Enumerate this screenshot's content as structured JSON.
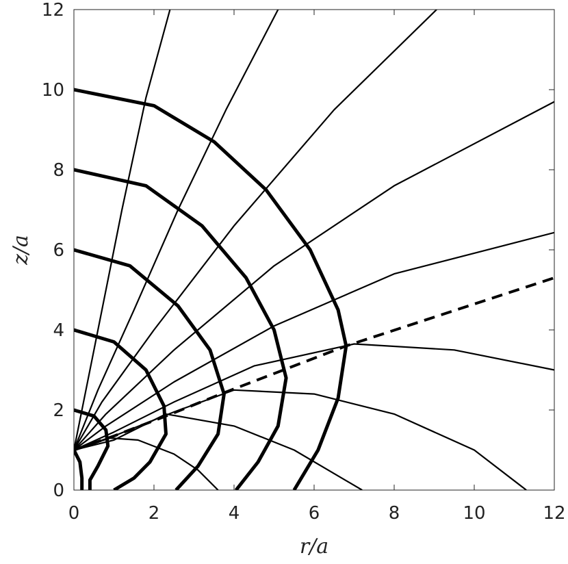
{
  "chart_data": {
    "type": "line",
    "xlabel": "r/a",
    "ylabel": "z/a",
    "xlim": [
      0,
      12
    ],
    "ylim": [
      0,
      12
    ],
    "xticks": [
      0,
      2,
      4,
      6,
      8,
      10,
      12
    ],
    "yticks": [
      0,
      2,
      4,
      6,
      8,
      10,
      12
    ],
    "grid": false,
    "series": [
      {
        "color": "#000000",
        "line_width": 5,
        "dashed": false,
        "x": [
          0,
          2,
          3.5,
          4.8,
          5.9,
          6.6,
          6.8,
          6.6,
          6.1,
          5.5
        ],
        "values": [
          10,
          9.6,
          8.7,
          7.5,
          6,
          4.5,
          3.6,
          2.3,
          1,
          0
        ]
      },
      {
        "color": "#000000",
        "line_width": 5,
        "dashed": false,
        "x": [
          0,
          1.8,
          3.2,
          4.3,
          5.0,
          5.3,
          5.1,
          4.6,
          4.05
        ],
        "values": [
          8,
          7.6,
          6.6,
          5.3,
          4,
          2.8,
          1.6,
          0.7,
          0
        ]
      },
      {
        "color": "#000000",
        "line_width": 5,
        "dashed": false,
        "x": [
          0,
          1.4,
          2.6,
          3.4,
          3.75,
          3.6,
          3.1,
          2.55
        ],
        "values": [
          6,
          5.6,
          4.6,
          3.5,
          2.4,
          1.4,
          0.6,
          0
        ]
      },
      {
        "color": "#000000",
        "line_width": 5,
        "dashed": false,
        "x": [
          0,
          1,
          1.8,
          2.25,
          2.3,
          1.9,
          1.5,
          1.0
        ],
        "values": [
          4,
          3.7,
          3,
          2.1,
          1.4,
          0.7,
          0.3,
          0
        ]
      },
      {
        "color": "#000000",
        "line_width": 5,
        "dashed": false,
        "x": [
          0,
          0.5,
          0.8,
          0.85,
          0.6,
          0.4,
          0.4
        ],
        "values": [
          2,
          1.85,
          1.5,
          1.1,
          0.6,
          0.25,
          0
        ]
      },
      {
        "color": "#000000",
        "line_width": 5,
        "dashed": false,
        "x": [
          0,
          0.15,
          0.2,
          0.2
        ],
        "values": [
          1,
          0.7,
          0.3,
          0
        ]
      },
      {
        "color": "#000000",
        "line_width": 2.2,
        "dashed": false,
        "x": [
          0,
          0.5,
          1.2,
          1.8,
          2.4
        ],
        "values": [
          1,
          3.5,
          7,
          9.8,
          12
        ]
      },
      {
        "color": "#000000",
        "line_width": 2.2,
        "dashed": false,
        "x": [
          0,
          0.6,
          1.5,
          2.6,
          3.8,
          5.1
        ],
        "values": [
          1,
          2.5,
          4.5,
          7,
          9.5,
          12
        ]
      },
      {
        "color": "#000000",
        "line_width": 2.2,
        "dashed": false,
        "x": [
          0,
          0.7,
          2,
          4,
          6.5,
          9.06
        ],
        "values": [
          1,
          2.2,
          4,
          6.6,
          9.5,
          12
        ]
      },
      {
        "color": "#000000",
        "line_width": 2.2,
        "dashed": false,
        "x": [
          0,
          0.8,
          2.5,
          5,
          8,
          12
        ],
        "values": [
          1,
          1.9,
          3.5,
          5.6,
          7.6,
          9.7
        ]
      },
      {
        "color": "#000000",
        "line_width": 2.2,
        "dashed": false,
        "x": [
          0,
          0.8,
          2.5,
          5,
          8,
          12
        ],
        "values": [
          1,
          1.6,
          2.7,
          4.1,
          5.4,
          6.43
        ]
      },
      {
        "color": "#000000",
        "line_width": 4,
        "dashed": true,
        "x": [
          0,
          1,
          2.3,
          3.8,
          6.8,
          12
        ],
        "values": [
          1,
          1.35,
          1.85,
          2.45,
          3.6,
          5.3
        ]
      },
      {
        "color": "#000000",
        "line_width": 2.2,
        "dashed": false,
        "x": [
          0,
          1,
          2.5,
          4.5,
          7,
          9.5,
          12
        ],
        "values": [
          1,
          1.45,
          2.2,
          3.1,
          3.65,
          3.5,
          3.0
        ]
      },
      {
        "color": "#000000",
        "line_width": 2.2,
        "dashed": false,
        "x": [
          0,
          1,
          2.5,
          4,
          6,
          8,
          10,
          11.3
        ],
        "values": [
          1,
          1.35,
          1.95,
          2.5,
          2.4,
          1.9,
          1.0,
          0
        ]
      },
      {
        "color": "#000000",
        "line_width": 2.2,
        "dashed": false,
        "x": [
          0,
          1,
          2.3,
          4,
          5.5,
          7.2
        ],
        "values": [
          1,
          1.25,
          1.9,
          1.6,
          1.0,
          0
        ]
      },
      {
        "color": "#000000",
        "line_width": 2.2,
        "dashed": false,
        "x": [
          0,
          0.9,
          1.6,
          2.5,
          3.1,
          3.6
        ],
        "values": [
          1,
          1.3,
          1.25,
          0.9,
          0.5,
          0
        ]
      }
    ]
  }
}
